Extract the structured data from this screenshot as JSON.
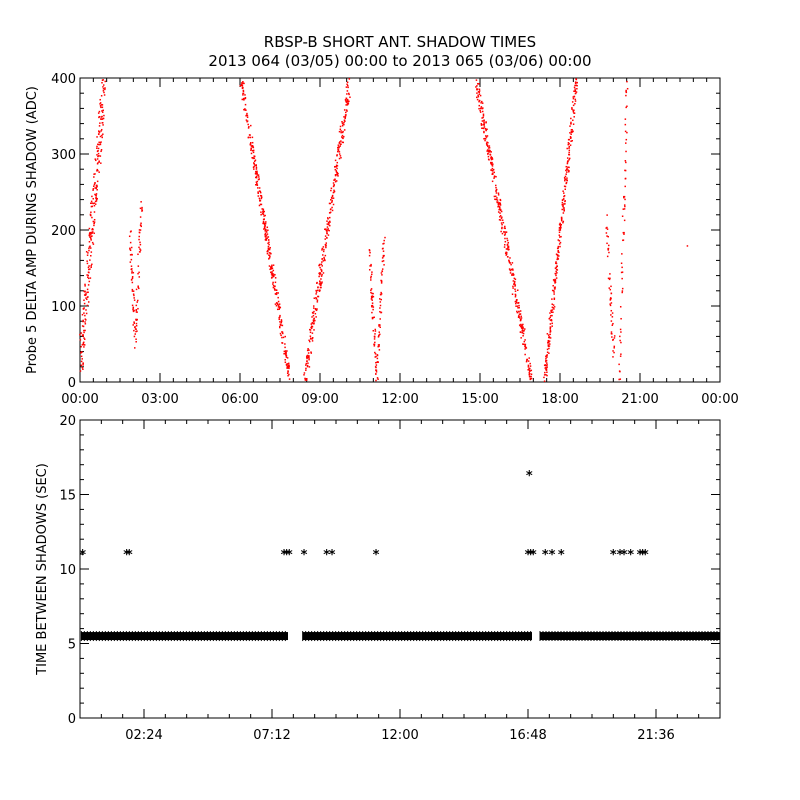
{
  "chart_data": [
    {
      "type": "scatter",
      "title": "RBSP-B SHORT ANT. SHADOW TIMES",
      "subtitle": "2013 064 (03/05) 00:00 to 2013 065 (03/06) 00:00",
      "xlabel": "",
      "ylabel": "Probe 5 DELTA AMP DURING SHADOW (ADC)",
      "xlim": [
        0,
        24
      ],
      "ylim": [
        0,
        400
      ],
      "x_unit": "hours",
      "x_ticks": [
        0,
        3,
        6,
        9,
        12,
        15,
        18,
        21,
        24
      ],
      "x_tick_labels": [
        "00:00",
        "03:00",
        "06:00",
        "09:00",
        "12:00",
        "15:00",
        "18:00",
        "21:00",
        "00:00"
      ],
      "y_ticks": [
        0,
        100,
        200,
        300,
        400
      ],
      "y_tick_labels": [
        "0",
        "100",
        "200",
        "300",
        "400"
      ],
      "color": "#ff0000",
      "grid": false,
      "branches": [
        {
          "from": [
            0.0,
            30
          ],
          "to": [
            0.9,
            400
          ],
          "spread": 40,
          "count": 260
        },
        {
          "from": [
            1.85,
            195
          ],
          "to": [
            2.05,
            55
          ],
          "spread": 12,
          "count": 50
        },
        {
          "from": [
            2.05,
            55
          ],
          "to": [
            2.3,
            245
          ],
          "spread": 12,
          "count": 50
        },
        {
          "from": [
            6.0,
            400
          ],
          "to": [
            7.85,
            5
          ],
          "spread": 12,
          "count": 320
        },
        {
          "from": [
            8.4,
            5
          ],
          "to": [
            10.1,
            400
          ],
          "spread": 18,
          "count": 320
        },
        {
          "from": [
            10.85,
            170
          ],
          "to": [
            11.1,
            5
          ],
          "spread": 10,
          "count": 60
        },
        {
          "from": [
            11.1,
            5
          ],
          "to": [
            11.4,
            200
          ],
          "spread": 10,
          "count": 60
        },
        {
          "from": [
            14.8,
            400
          ],
          "to": [
            16.9,
            5
          ],
          "spread": 15,
          "count": 340
        },
        {
          "from": [
            17.4,
            5
          ],
          "to": [
            18.6,
            400
          ],
          "spread": 15,
          "count": 280
        },
        {
          "from": [
            19.7,
            220
          ],
          "to": [
            20.0,
            40
          ],
          "spread": 15,
          "count": 50
        },
        {
          "from": [
            20.2,
            0
          ],
          "to": [
            20.5,
            400
          ],
          "spread": 10,
          "count": 60
        }
      ],
      "isolated_points": [
        [
          22.75,
          180
        ]
      ]
    },
    {
      "type": "scatter",
      "xlabel": "",
      "ylabel": "TIME BETWEEN SHADOWS (SEC)",
      "xlim": [
        0,
        24
      ],
      "ylim": [
        0,
        20
      ],
      "x_unit": "hours",
      "x_ticks": [
        2.4,
        7.2,
        12.0,
        16.8,
        21.6
      ],
      "x_tick_labels": [
        "02:24",
        "07:12",
        "12:00",
        "16:48",
        "21:36"
      ],
      "y_ticks": [
        0,
        5,
        10,
        15,
        20
      ],
      "y_tick_labels": [
        "0",
        "5",
        "10",
        "15",
        "20"
      ],
      "marker": "*",
      "color": "#000000",
      "grid": false,
      "baseline_value": 5.5,
      "baseline_segments": [
        [
          0.05,
          7.8
        ],
        [
          8.35,
          16.95
        ],
        [
          17.25,
          24.0
        ]
      ],
      "points": [
        [
          0.1,
          11
        ],
        [
          1.75,
          11
        ],
        [
          1.85,
          11
        ],
        [
          7.65,
          11
        ],
        [
          7.75,
          11
        ],
        [
          7.85,
          11
        ],
        [
          8.4,
          11
        ],
        [
          9.25,
          11
        ],
        [
          9.45,
          11
        ],
        [
          11.1,
          11
        ],
        [
          16.85,
          16.3
        ],
        [
          16.8,
          11
        ],
        [
          16.9,
          11
        ],
        [
          17.0,
          11
        ],
        [
          17.45,
          11
        ],
        [
          17.7,
          11
        ],
        [
          18.05,
          11
        ],
        [
          20.0,
          11
        ],
        [
          20.25,
          11
        ],
        [
          20.4,
          11
        ],
        [
          20.65,
          11
        ],
        [
          21.0,
          11
        ],
        [
          21.1,
          11
        ],
        [
          21.2,
          11
        ]
      ]
    }
  ]
}
